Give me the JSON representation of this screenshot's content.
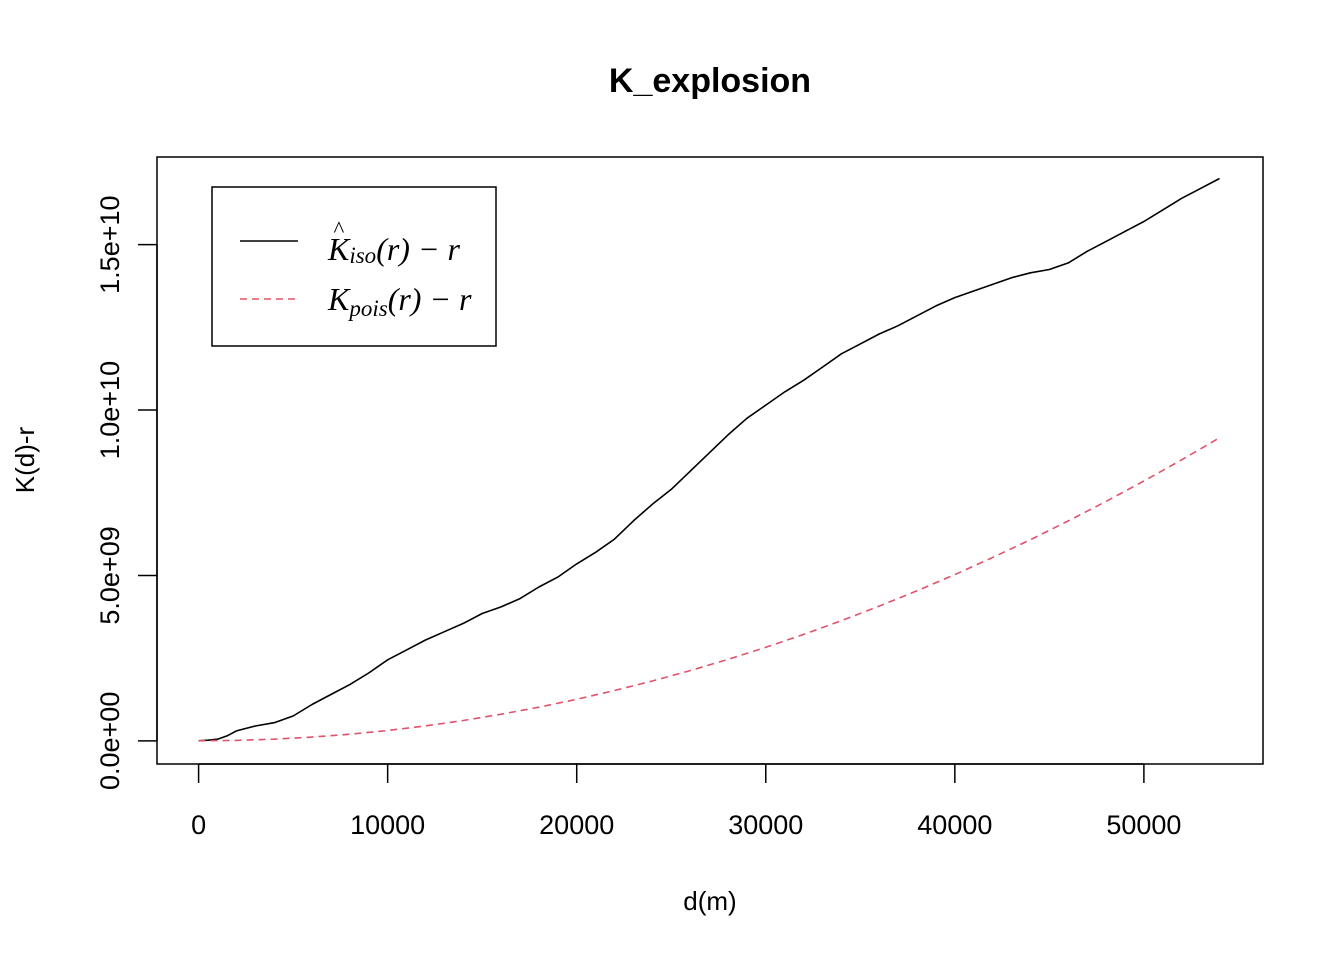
{
  "chart_data": {
    "type": "line",
    "title": "K_explosion",
    "xlabel": "d(m)",
    "ylabel": "K(d)-r",
    "xlim": [
      -2200,
      56300
    ],
    "ylim": [
      -700000000,
      17650000000
    ],
    "x_ticks": [
      0,
      10000,
      20000,
      30000,
      40000,
      50000
    ],
    "x_tick_labels": [
      "0",
      "10000",
      "20000",
      "30000",
      "40000",
      "50000"
    ],
    "y_ticks": [
      0,
      5000000000,
      10000000000,
      15000000000
    ],
    "y_tick_labels": [
      "0.0e+00",
      "5.0e+09",
      "1.0e+10",
      "1.5e+10"
    ],
    "grid": false,
    "legend_position": "top-left",
    "series": [
      {
        "key": "iso",
        "legend": {
          "base": "K",
          "hat": "^",
          "sub": "iso",
          "rest": "(r) − r"
        },
        "color": "#000000",
        "dash": "solid",
        "x": [
          0,
          500,
          1000,
          1500,
          2000,
          3000,
          4000,
          5000,
          6000,
          7000,
          8000,
          9000,
          10000,
          11000,
          12000,
          13000,
          14000,
          15000,
          16000,
          17000,
          18000,
          19000,
          20000,
          21000,
          22000,
          23000,
          24000,
          25000,
          26000,
          27000,
          28000,
          29000,
          30000,
          31000,
          32000,
          33000,
          34000,
          35000,
          36000,
          37000,
          38000,
          39000,
          40000,
          41000,
          42000,
          43000,
          44000,
          45000,
          46000,
          47000,
          48000,
          49000,
          50000,
          51000,
          52000,
          53000,
          54000
        ],
        "y": [
          0,
          20000000,
          50000000,
          150000000,
          300000000,
          450000000,
          550000000,
          750000000,
          1100000000,
          1400000000,
          1700000000,
          2050000000,
          2450000000,
          2750000000,
          3050000000,
          3300000000,
          3550000000,
          3850000000,
          4050000000,
          4300000000,
          4650000000,
          4950000000,
          5350000000,
          5700000000,
          6100000000,
          6650000000,
          7150000000,
          7600000000,
          8150000000,
          8700000000,
          9250000000,
          9750000000,
          10150000000,
          10550000000,
          10900000000,
          11300000000,
          11700000000,
          12000000000,
          12300000000,
          12550000000,
          12850000000,
          13150000000,
          13400000000,
          13600000000,
          13800000000,
          14000000000,
          14150000000,
          14250000000,
          14450000000,
          14800000000,
          15100000000,
          15400000000,
          15700000000,
          16050000000,
          16400000000,
          16700000000,
          17000000000
        ]
      },
      {
        "key": "pois",
        "legend": {
          "base": "K",
          "hat": "",
          "sub": "pois",
          "rest": "(r) − r"
        },
        "color": "#DF536B",
        "dash": "dashed",
        "x": [
          0,
          2000,
          4000,
          6000,
          8000,
          10000,
          12000,
          14000,
          16000,
          18000,
          20000,
          22000,
          24000,
          26000,
          28000,
          30000,
          32000,
          34000,
          36000,
          38000,
          40000,
          42000,
          44000,
          46000,
          48000,
          50000,
          52000,
          54000
        ],
        "y": [
          0,
          12600000,
          50300000,
          113000000,
          201000000,
          314000000,
          452000000,
          616000000,
          804000000,
          1018000000,
          1257000000,
          1521000000,
          1810000000,
          2124000000,
          2463000000,
          2827000000,
          3217000000,
          3632000000,
          4072000000,
          4536000000,
          5027000000,
          5542000000,
          6082000000,
          6648000000,
          7238000000,
          7854000000,
          8495000000,
          9161000000
        ]
      }
    ]
  }
}
